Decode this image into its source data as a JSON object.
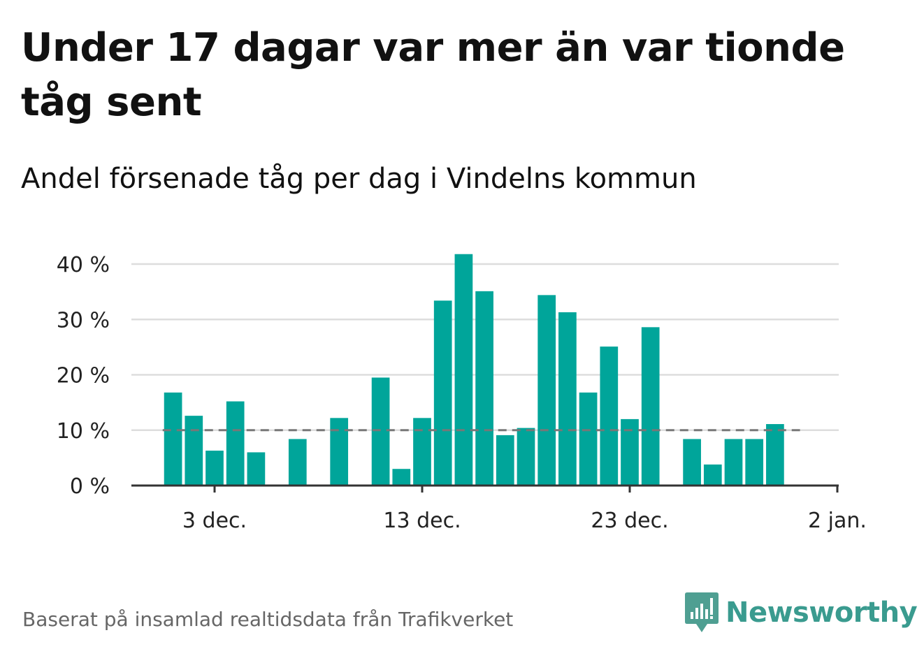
{
  "title": "Under 17 dagar var mer än var tionde tåg sent",
  "subtitle": "Andel försenade tåg per dag i Vindelns kommun",
  "footer": "Baserat på insamlad realtidsdata från Trafikverket",
  "brand": {
    "name": "Newsworthy",
    "color": "#3a9b8f",
    "icon": "bar-chart-speech-bubble-icon"
  },
  "colors": {
    "bar": "#00a59a",
    "reference_line": "#777777",
    "grid": "#dddddd",
    "axis": "#333333"
  },
  "chart_data": {
    "type": "bar",
    "x_start_day": 1,
    "x_axis_ticks": [
      {
        "day": 3,
        "label": "3 dec."
      },
      {
        "day": 13,
        "label": "13 dec."
      },
      {
        "day": 23,
        "label": "23 dec."
      },
      {
        "day": 33,
        "label": "2 jan."
      }
    ],
    "y_axis_ticks": [
      {
        "value": 0,
        "label": "0 %"
      },
      {
        "value": 10,
        "label": "10 %"
      },
      {
        "value": 20,
        "label": "20 %"
      },
      {
        "value": 30,
        "label": "30 %"
      },
      {
        "value": 40,
        "label": "40 %"
      }
    ],
    "ylim": [
      0,
      40
    ],
    "reference_line": 10,
    "values": [
      16.8,
      12.6,
      6.3,
      15.2,
      6.0,
      null,
      8.4,
      null,
      12.2,
      null,
      19.5,
      3.0,
      12.2,
      33.4,
      41.8,
      35.1,
      9.1,
      10.4,
      34.4,
      31.3,
      16.8,
      25.1,
      12.0,
      28.6,
      null,
      8.4,
      3.8,
      8.4,
      8.4,
      11.1
    ],
    "grid": true
  }
}
